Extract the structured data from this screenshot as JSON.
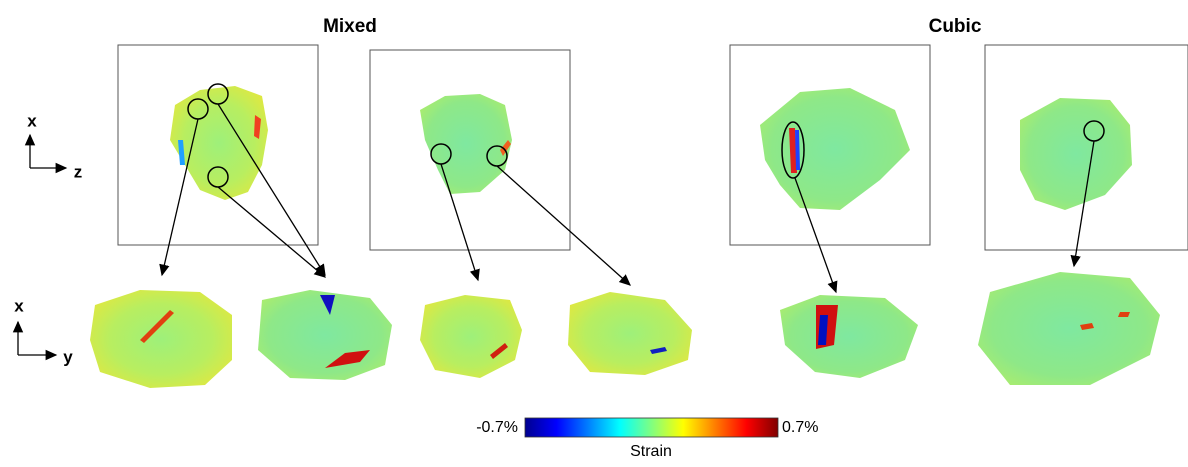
{
  "titles": {
    "left": "Mixed",
    "right": "Cubic"
  },
  "axes_top": {
    "vertical": "x",
    "horizontal": "z"
  },
  "axes_bottom": {
    "vertical": "x",
    "horizontal": "y"
  },
  "colorbar": {
    "min_label": "-0.7%",
    "max_label": "0.7%",
    "label": "Strain"
  }
}
